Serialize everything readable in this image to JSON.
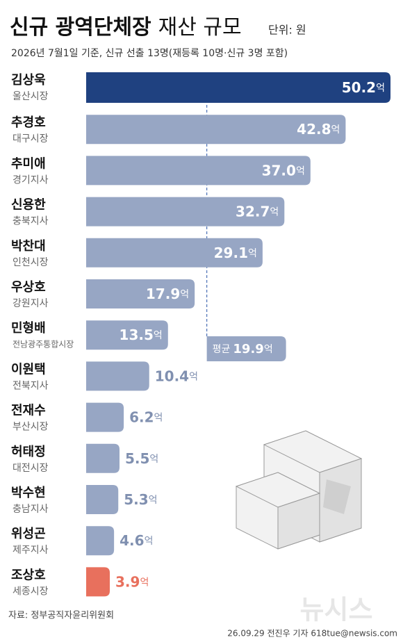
{
  "chart_data": {
    "type": "bar",
    "orientation": "horizontal",
    "title_parts": [
      "신규 광역단체장",
      "재산 규모"
    ],
    "unit_note": "단위: 원",
    "subtitle": "2026년 7월1일 기준, 신규 선출 13명(재등록 10명·신규 3명 포함)",
    "categories": [
      "김상욱",
      "추경호",
      "추미애",
      "신용한",
      "박찬대",
      "우상호",
      "민형배",
      "이원택",
      "전재수",
      "허태정",
      "박수현",
      "위성곤",
      "조상호"
    ],
    "regions": [
      "울산시장",
      "대구시장",
      "경기지사",
      "충북지사",
      "인천시장",
      "강원지사",
      "전남광주통합시장",
      "전북지사",
      "부산시장",
      "대전시장",
      "충남지사",
      "제주지사",
      "세종시장"
    ],
    "values": [
      50.2,
      42.8,
      37.0,
      32.7,
      29.1,
      17.9,
      13.5,
      10.4,
      6.2,
      5.5,
      5.3,
      4.6,
      3.9
    ],
    "value_labels": [
      "50.2",
      "42.8",
      "37.0",
      "32.7",
      "29.1",
      "17.9",
      "13.5",
      "10.4",
      "6.2",
      "5.5",
      "5.3",
      "4.6",
      "3.9"
    ],
    "value_unit": "억",
    "colors": [
      "#1f4180",
      "#97a6c4",
      "#97a6c4",
      "#97a6c4",
      "#97a6c4",
      "#97a6c4",
      "#97a6c4",
      "#97a6c4",
      "#97a6c4",
      "#97a6c4",
      "#97a6c4",
      "#97a6c4",
      "#e8705d"
    ],
    "xlim": [
      0,
      50.2
    ],
    "average": {
      "label": "평균",
      "value": 19.9
    },
    "source": "자료: 정부공직자윤리위원회",
    "credit": "26.09.29 전진우 기자 618tue@newsis.com",
    "logo": "뉴시스"
  }
}
